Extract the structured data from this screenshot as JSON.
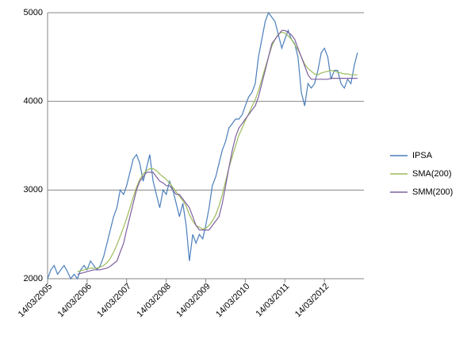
{
  "chart_data": {
    "type": "line",
    "x": [
      "2005-03-14",
      "2005-04-14",
      "2005-05-14",
      "2005-06-14",
      "2005-07-14",
      "2005-08-14",
      "2005-09-14",
      "2005-10-14",
      "2005-11-14",
      "2005-12-14",
      "2006-01-14",
      "2006-02-14",
      "2006-03-14",
      "2006-04-14",
      "2006-05-14",
      "2006-06-14",
      "2006-07-14",
      "2006-08-14",
      "2006-09-14",
      "2006-10-14",
      "2006-11-14",
      "2006-12-14",
      "2007-01-14",
      "2007-02-14",
      "2007-03-14",
      "2007-04-14",
      "2007-05-14",
      "2007-06-14",
      "2007-07-14",
      "2007-08-14",
      "2007-09-14",
      "2007-10-14",
      "2007-11-14",
      "2007-12-14",
      "2008-01-14",
      "2008-02-14",
      "2008-03-14",
      "2008-04-14",
      "2008-05-14",
      "2008-06-14",
      "2008-07-14",
      "2008-08-14",
      "2008-09-14",
      "2008-10-14",
      "2008-11-14",
      "2008-12-14",
      "2009-01-14",
      "2009-02-14",
      "2009-03-14",
      "2009-04-14",
      "2009-05-14",
      "2009-06-14",
      "2009-07-14",
      "2009-08-14",
      "2009-09-14",
      "2009-10-14",
      "2009-11-14",
      "2009-12-14",
      "2010-01-14",
      "2010-02-14",
      "2010-03-14",
      "2010-04-14",
      "2010-05-14",
      "2010-06-14",
      "2010-07-14",
      "2010-08-14",
      "2010-09-14",
      "2010-10-14",
      "2010-11-14",
      "2010-12-14",
      "2011-01-14",
      "2011-02-14",
      "2011-03-14",
      "2011-04-14",
      "2011-05-14",
      "2011-06-14",
      "2011-07-14",
      "2011-08-14",
      "2011-09-14",
      "2011-10-14",
      "2011-11-14",
      "2011-12-14",
      "2012-01-14",
      "2012-02-14",
      "2012-03-14",
      "2012-04-14",
      "2012-05-14",
      "2012-06-14",
      "2012-07-14",
      "2012-08-14",
      "2012-09-14",
      "2012-10-14",
      "2012-11-14",
      "2012-12-14",
      "2013-01-14"
    ],
    "series": [
      {
        "name": "IPSA",
        "color": "#4a7ebb",
        "values": [
          2000,
          2100,
          2150,
          2050,
          2100,
          2150,
          2080,
          2000,
          2050,
          2000,
          2100,
          2150,
          2100,
          2200,
          2150,
          2100,
          2150,
          2250,
          2400,
          2550,
          2700,
          2800,
          3000,
          2950,
          3050,
          3200,
          3350,
          3400,
          3300,
          3100,
          3250,
          3400,
          3100,
          2950,
          2800,
          3000,
          2950,
          3100,
          3000,
          2850,
          2700,
          2850,
          2600,
          2200,
          2500,
          2400,
          2500,
          2450,
          2600,
          2800,
          3050,
          3150,
          3300,
          3450,
          3550,
          3700,
          3750,
          3800,
          3800,
          3850,
          3950,
          4050,
          4100,
          4200,
          4500,
          4700,
          4900,
          5000,
          4950,
          4900,
          4750,
          4600,
          4700,
          4800,
          4700,
          4650,
          4500,
          4100,
          3950,
          4200,
          4150,
          4200,
          4350,
          4550,
          4600,
          4500,
          4250,
          4350,
          4350,
          4200,
          4150,
          4250,
          4200,
          4400,
          4550
        ]
      },
      {
        "name": "SMA(200)",
        "color": "#9bbb59",
        "values": [
          null,
          null,
          null,
          null,
          null,
          null,
          null,
          null,
          null,
          2080,
          2090,
          2100,
          2110,
          2120,
          2120,
          2120,
          2130,
          2150,
          2180,
          2230,
          2300,
          2380,
          2480,
          2580,
          2680,
          2800,
          2920,
          3030,
          3120,
          3180,
          3220,
          3240,
          3240,
          3220,
          3180,
          3150,
          3120,
          3080,
          3030,
          2980,
          2930,
          2880,
          2820,
          2720,
          2650,
          2600,
          2580,
          2560,
          2570,
          2600,
          2650,
          2720,
          2820,
          2950,
          3100,
          3250,
          3380,
          3500,
          3620,
          3700,
          3780,
          3860,
          3940,
          4020,
          4120,
          4250,
          4380,
          4500,
          4620,
          4700,
          4760,
          4780,
          4770,
          4740,
          4700,
          4640,
          4580,
          4500,
          4420,
          4370,
          4340,
          4310,
          4300,
          4320,
          4330,
          4340,
          4350,
          4340,
          4330,
          4320,
          4310,
          4310,
          4300,
          4300,
          4300
        ]
      },
      {
        "name": "SMM(200)",
        "color": "#7f60a0",
        "values": [
          null,
          null,
          null,
          null,
          null,
          null,
          null,
          null,
          null,
          2050,
          2060,
          2070,
          2080,
          2090,
          2100,
          2100,
          2100,
          2110,
          2120,
          2140,
          2170,
          2200,
          2300,
          2400,
          2550,
          2700,
          2850,
          3000,
          3100,
          3150,
          3200,
          3200,
          3200,
          3150,
          3100,
          3080,
          3050,
          3050,
          3000,
          2950,
          2950,
          2900,
          2850,
          2800,
          2700,
          2600,
          2550,
          2550,
          2550,
          2550,
          2600,
          2650,
          2700,
          2850,
          3050,
          3250,
          3450,
          3600,
          3700,
          3750,
          3800,
          3850,
          3900,
          3950,
          4050,
          4200,
          4350,
          4500,
          4650,
          4700,
          4750,
          4800,
          4800,
          4780,
          4750,
          4700,
          4600,
          4500,
          4400,
          4300,
          4250,
          4250,
          4250,
          4250,
          4250,
          4250,
          4260,
          4260,
          4260,
          4260,
          4260,
          4260,
          4260,
          4260,
          4260
        ]
      }
    ],
    "xlim": [
      "2005-03-14",
      "2013-03-14"
    ],
    "xticks": [
      {
        "value": "2005-03-14",
        "label": "14/03/2005"
      },
      {
        "value": "2006-03-14",
        "label": "14/03/2006"
      },
      {
        "value": "2007-03-14",
        "label": "14/03/2007"
      },
      {
        "value": "2008-03-14",
        "label": "14/03/2008"
      },
      {
        "value": "2009-03-14",
        "label": "14/03/2009"
      },
      {
        "value": "2010-03-14",
        "label": "14/03/2010"
      },
      {
        "value": "2011-03-14",
        "label": "14/03/2011"
      },
      {
        "value": "2012-03-14",
        "label": "14/03/2012"
      }
    ],
    "ylim": [
      2000,
      5000
    ],
    "yticks": [
      2000,
      3000,
      4000,
      5000
    ],
    "grid": true,
    "legend": "right"
  }
}
